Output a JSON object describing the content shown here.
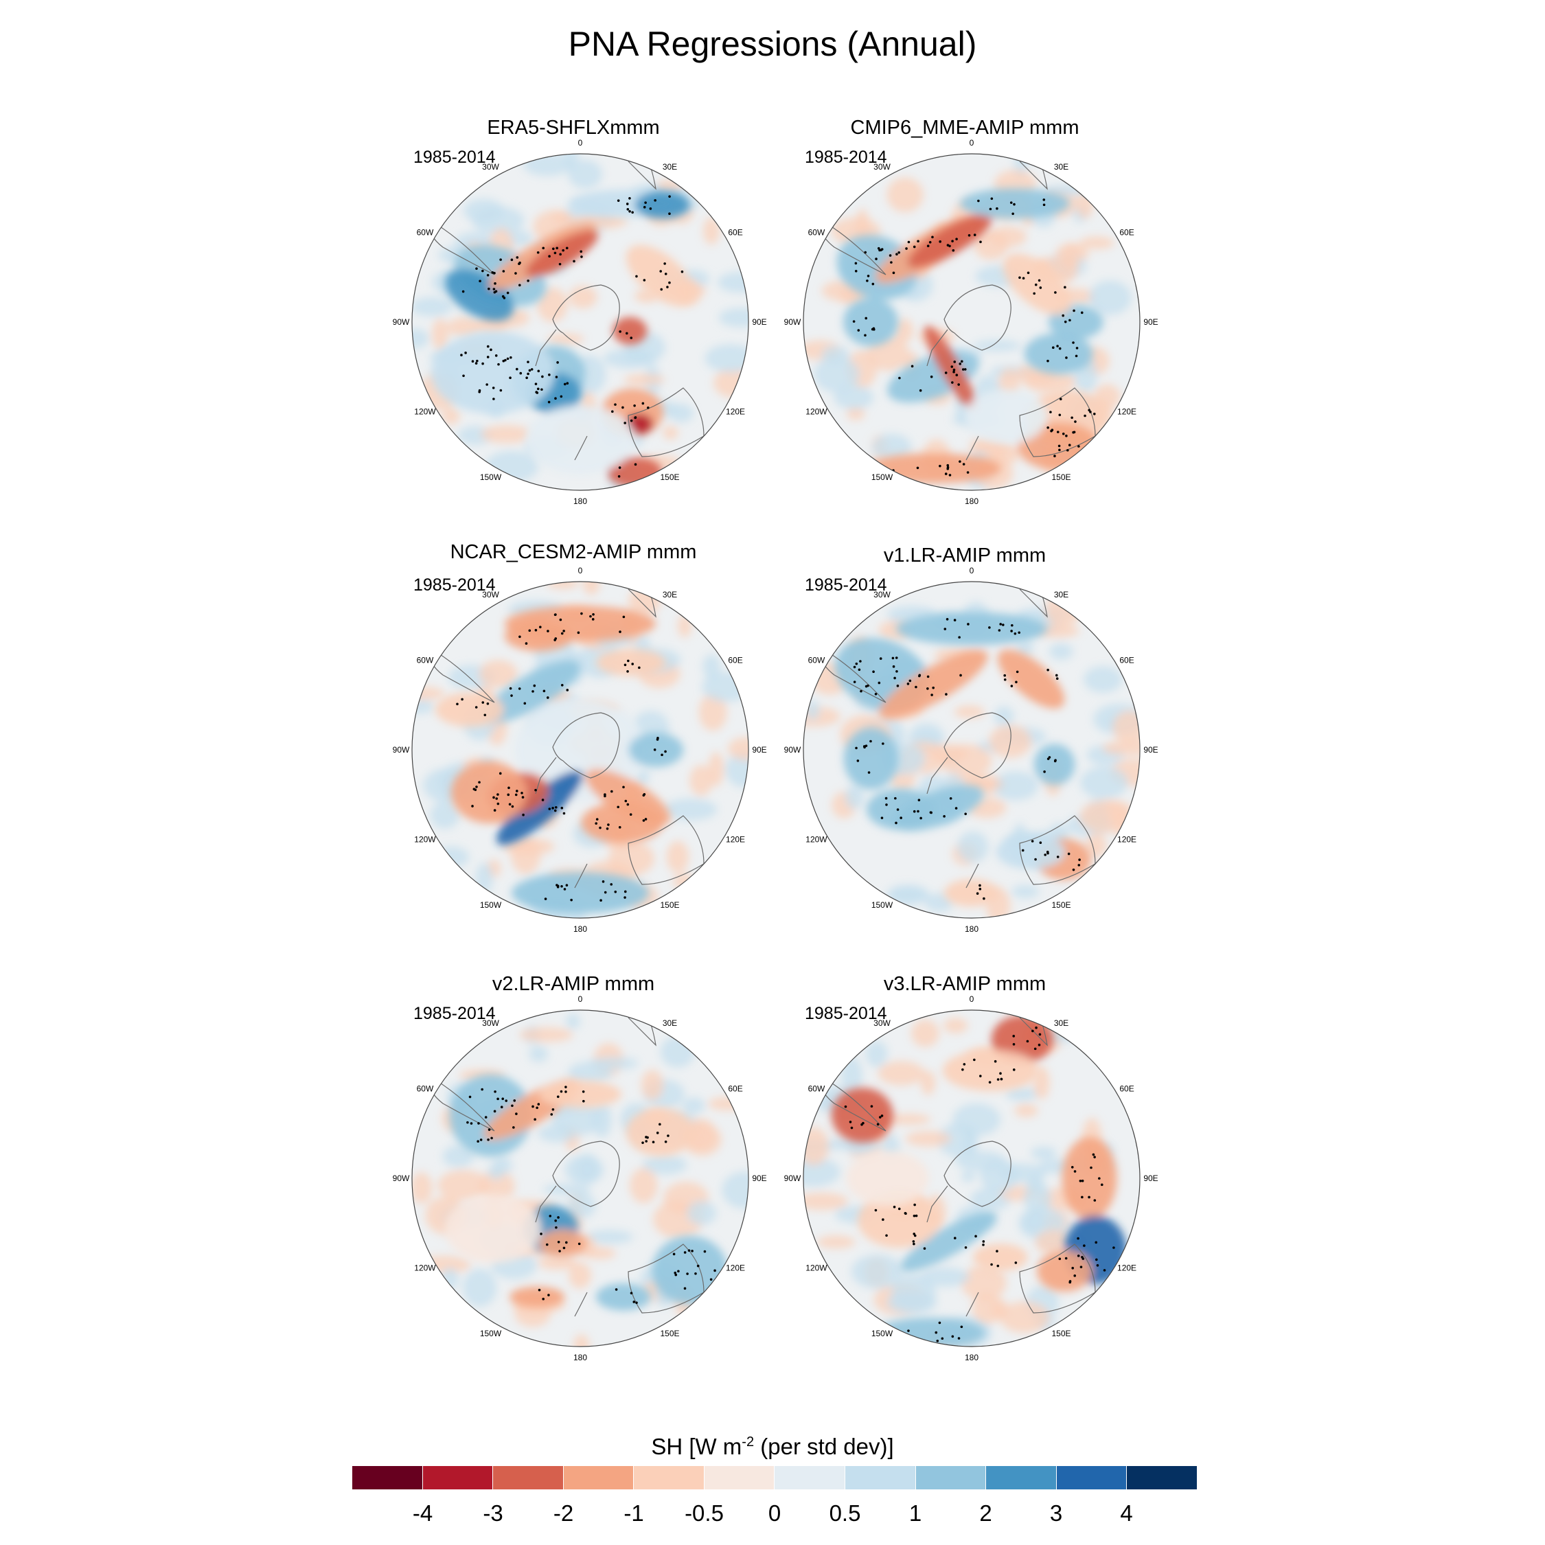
{
  "figure_title": "PNA Regressions (Annual)",
  "panels": [
    {
      "title": "ERA5-SHFLXmmm",
      "period": "1985-2014",
      "pattern": "era5"
    },
    {
      "title": "CMIP6_MME-AMIP  mmm",
      "period": "1985-2014",
      "pattern": "cmip6"
    },
    {
      "title": "NCAR_CESM2-AMIP  mmm",
      "period": "1985-2014",
      "pattern": "cesm2"
    },
    {
      "title": "v1.LR-AMIP  mmm",
      "period": "1985-2014",
      "pattern": "v1"
    },
    {
      "title": "v2.LR-AMIP  mmm",
      "period": "1985-2014",
      "pattern": "v2"
    },
    {
      "title": "v3.LR-AMIP  mmm",
      "period": "1985-2014",
      "pattern": "v3"
    }
  ],
  "longitude_labels": [
    "0",
    "30E",
    "60E",
    "90E",
    "120E",
    "150E",
    "180",
    "150W",
    "120W",
    "90W",
    "60W",
    "30W"
  ],
  "colorbar": {
    "title_main": "SH [W m",
    "title_sup": "-2",
    "title_tail": " (per std dev)]",
    "colors": [
      "#67001f",
      "#b2182b",
      "#d6604d",
      "#f4a582",
      "#fbd0b9",
      "#f7e8e0",
      "#e4edf3",
      "#c5dfee",
      "#92c5de",
      "#4393c3",
      "#2166ac",
      "#053061"
    ],
    "tick_labels": [
      "-4",
      "-3",
      "-2",
      "-1",
      "-0.5",
      "0",
      "0.5",
      "1",
      "2",
      "3",
      "4"
    ]
  }
}
